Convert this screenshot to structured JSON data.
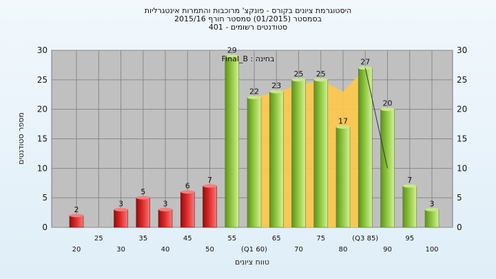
{
  "header": {
    "line1": "היסטוגרמת ציונים בקורס - פונקצ' מרוכבות והתמרות אינטגרליות",
    "line2": "בסמסטר   (01/2015)  סמסטר חורף  2015/16",
    "line3": "סטודנטים רשומים - 401"
  },
  "chart_data": {
    "type": "bar",
    "title": "היסטוגרמת ציונים בקורס - פונקצ' מרוכבות והתמרות אינטגרליות",
    "xlabel": "טווח ציונים",
    "ylabel": "מספר סטודנטים",
    "annotation": "Final_B : בחינה",
    "ylim": [
      0,
      30
    ],
    "yticks": [
      0,
      5,
      10,
      15,
      20,
      25,
      30
    ],
    "grid": true,
    "x_tick_labels_row1": [
      "25",
      "35",
      "45",
      "55",
      "65",
      "75",
      "(Q3 85)",
      "95"
    ],
    "x_tick_labels_row2": [
      "20",
      "30",
      "40",
      "50",
      "(Q1 60)",
      "70",
      "80",
      "90",
      "100"
    ],
    "categories": [
      "20",
      "25",
      "30",
      "35",
      "40",
      "45",
      "50",
      "55",
      "60",
      "65",
      "70",
      "75",
      "80",
      "85",
      "90",
      "95",
      "100"
    ],
    "values": [
      2,
      0,
      3,
      5,
      3,
      6,
      7,
      29,
      22,
      23,
      25,
      25,
      17,
      27,
      20,
      7,
      3
    ],
    "value_labels": [
      "2",
      "",
      "3",
      "5",
      "3",
      "6",
      "7",
      "29",
      "22",
      "23",
      "25",
      "25",
      "17",
      "27",
      "20",
      "7",
      "3"
    ],
    "fail_threshold": 55,
    "colors": {
      "fail_bar": "#e02828",
      "pass_bar": "#8cc63c",
      "area_fill": "#ffc84a",
      "plot_bg": "#c0c0c0",
      "grid": "#888888"
    },
    "quartile_band": {
      "from": 60,
      "to": 85,
      "values": [
        22,
        23,
        24,
        25,
        23,
        27
      ]
    },
    "connector_line": {
      "from": 85,
      "to": 90,
      "values": [
        27,
        10
      ]
    }
  }
}
